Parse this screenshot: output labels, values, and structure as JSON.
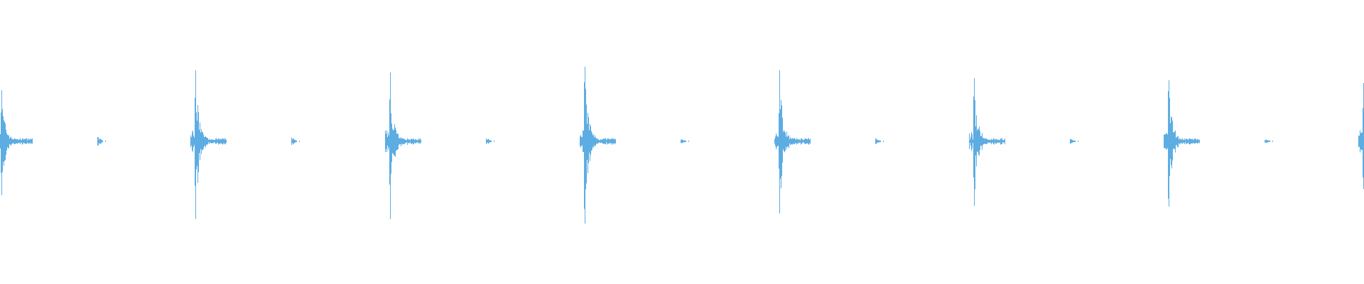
{
  "waveform": {
    "color": "#5dade2",
    "background": "#ffffff",
    "amplitude_range": [
      -1,
      1
    ],
    "bursts": [
      {
        "index": 1,
        "peak": 0.72,
        "echo": 0.06
      },
      {
        "index": 2,
        "peak": 1.0,
        "echo": 0.05
      },
      {
        "index": 3,
        "peak": 0.97,
        "echo": 0.05
      },
      {
        "index": 4,
        "peak": 1.05,
        "echo": 0.04
      },
      {
        "index": 5,
        "peak": 1.0,
        "echo": 0.04
      },
      {
        "index": 6,
        "peak": 0.89,
        "echo": 0.03
      },
      {
        "index": 7,
        "peak": 0.86,
        "echo": 0.03
      },
      {
        "index": 8,
        "peak": 0.82,
        "echo": 0.03
      }
    ]
  }
}
